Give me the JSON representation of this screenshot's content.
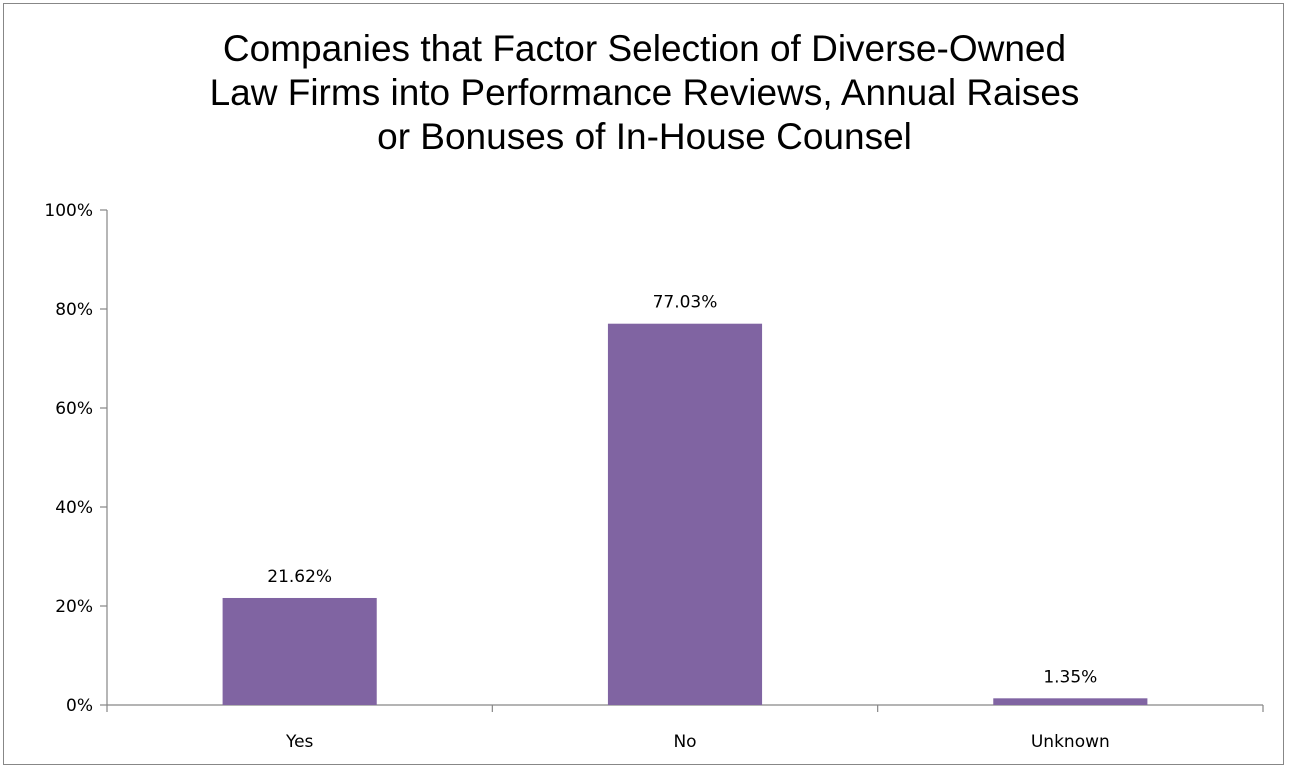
{
  "chart_data": {
    "type": "bar",
    "title_lines": [
      "Companies that Factor Selection of Diverse-Owned",
      "Law Firms into Performance Reviews, Annual Raises",
      "or Bonuses of In-House Counsel"
    ],
    "categories": [
      "Yes",
      "No",
      "Unknown"
    ],
    "values": [
      21.62,
      77.03,
      1.35
    ],
    "data_labels": [
      "21.62%",
      "77.03%",
      "1.35%"
    ],
    "ylim": [
      0,
      100
    ],
    "yticks": [
      0,
      20,
      40,
      60,
      80,
      100
    ],
    "ytick_labels": [
      "0%",
      "20%",
      "40%",
      "60%",
      "80%",
      "100%"
    ],
    "xlabel": "",
    "ylabel": "",
    "grid": false,
    "legend": "none",
    "bar_color": "#8064A2",
    "axis_color": "#868686"
  }
}
